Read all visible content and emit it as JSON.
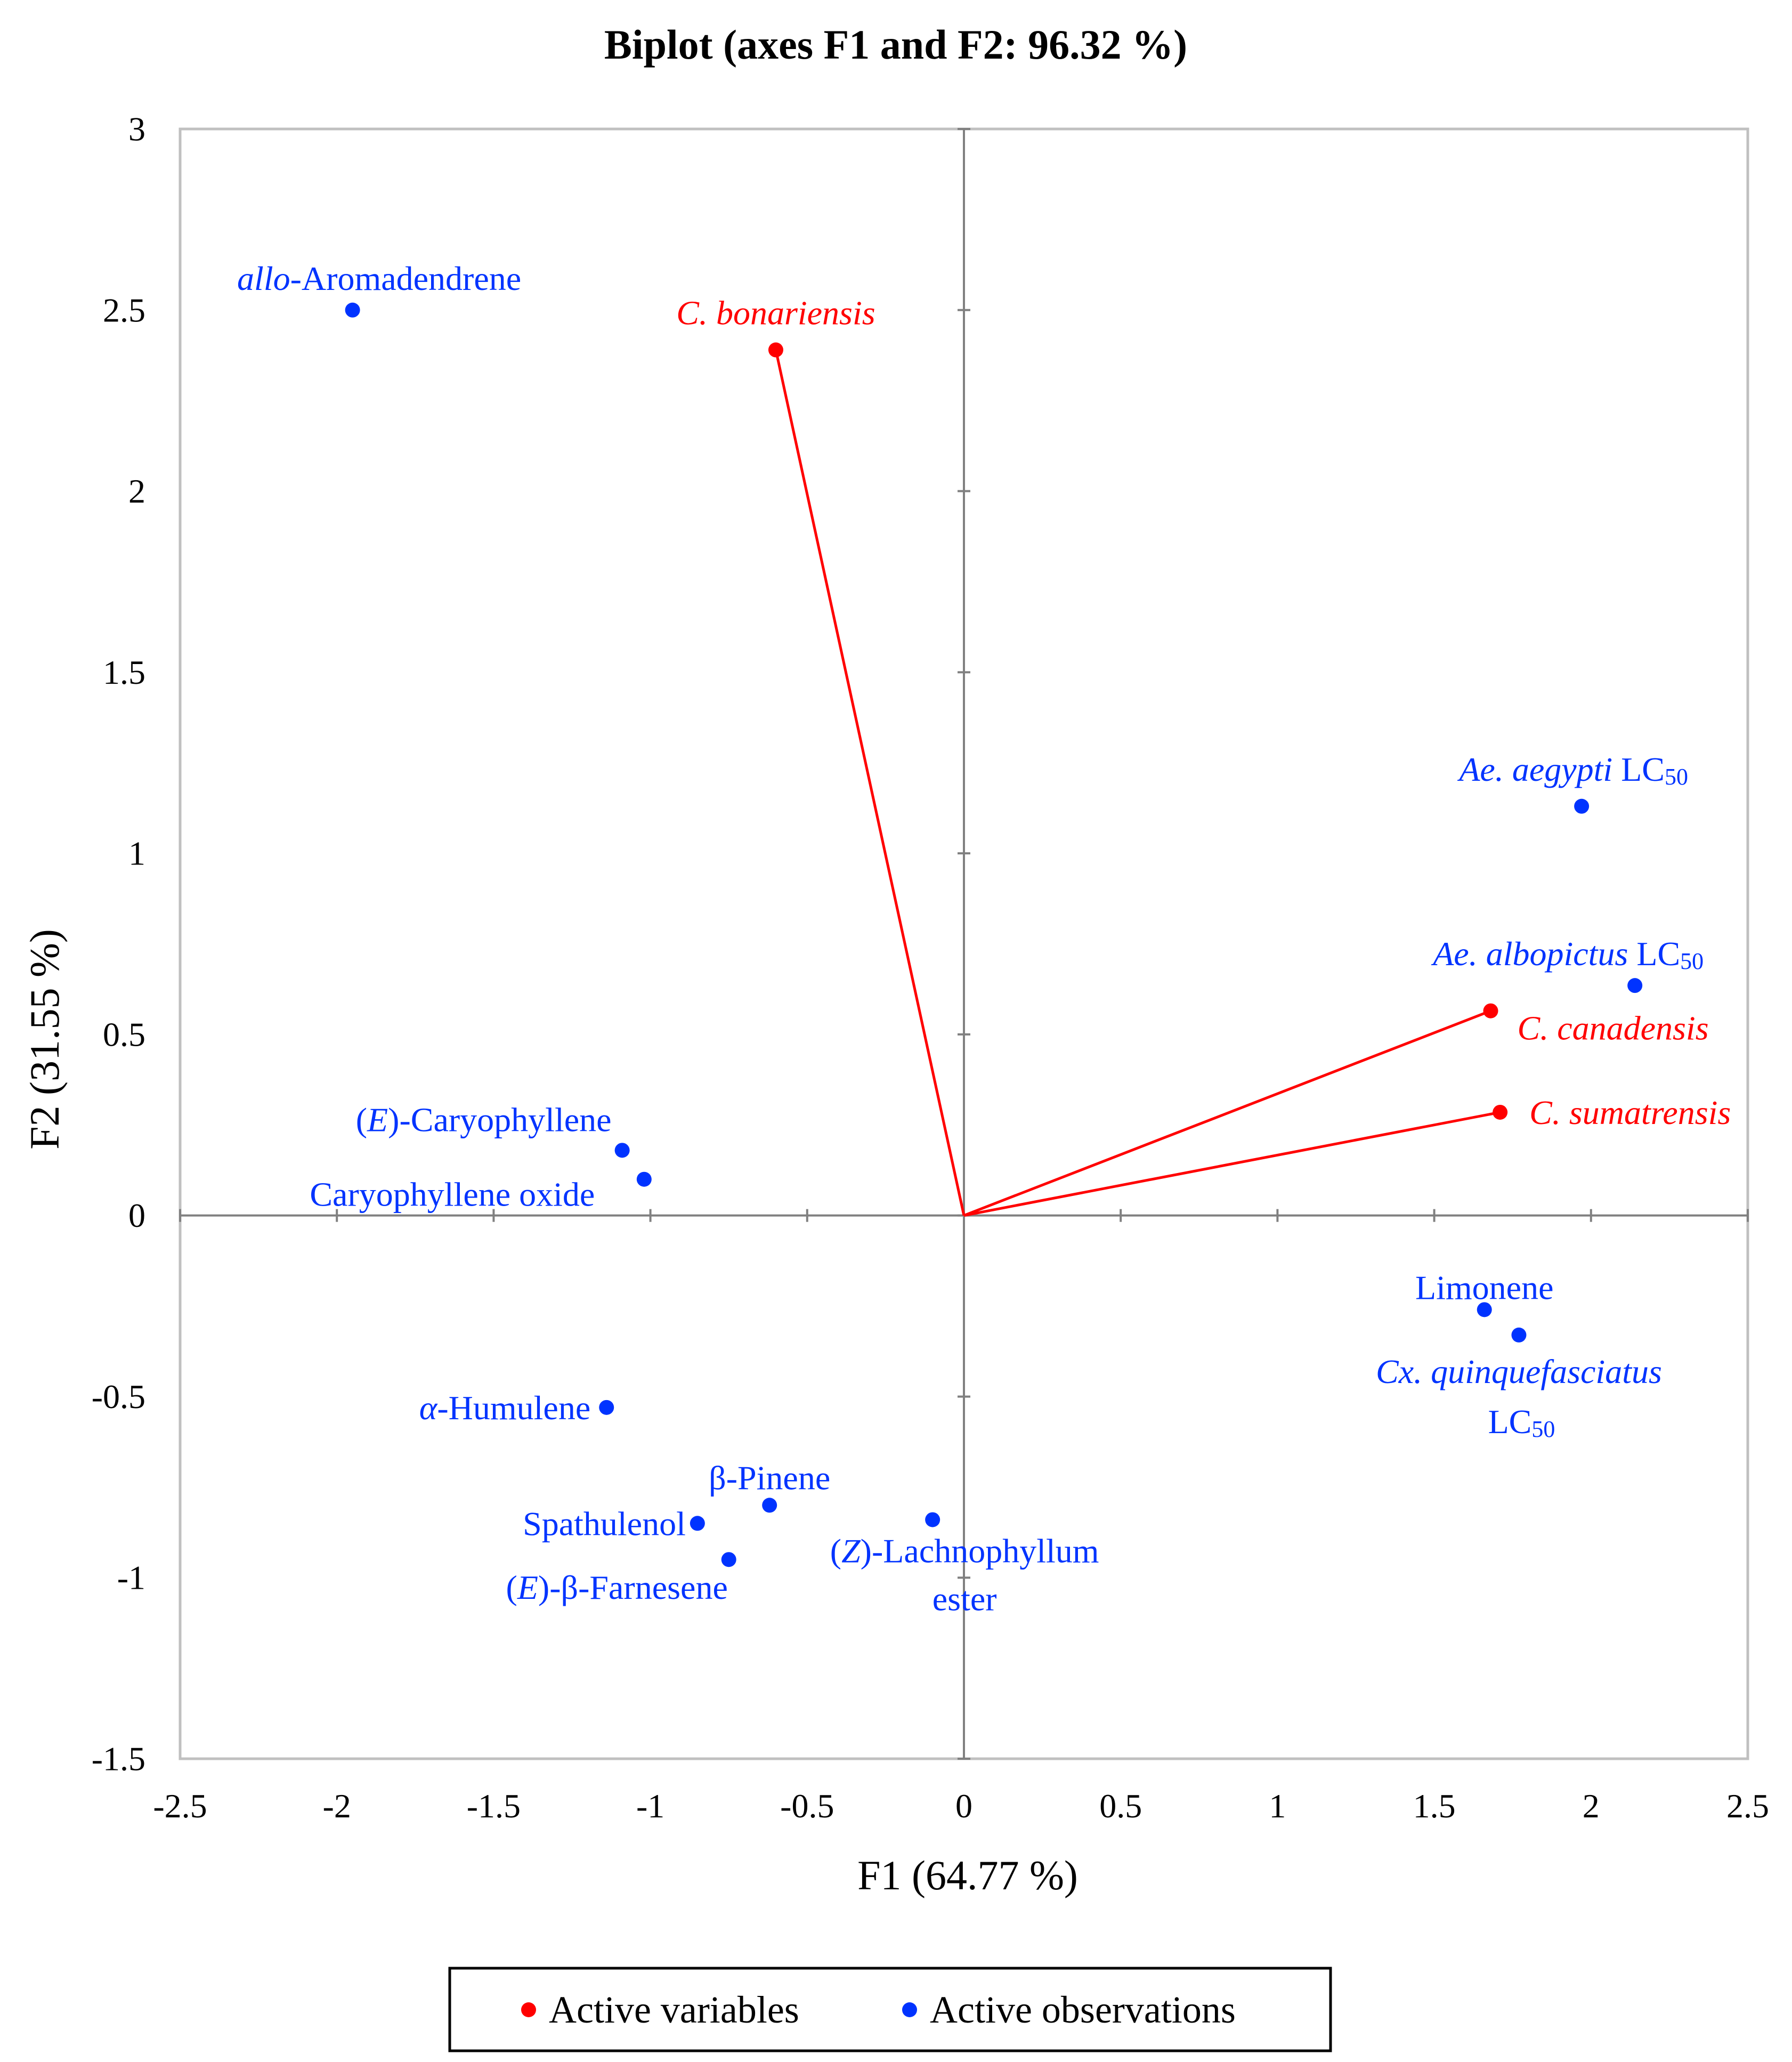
{
  "chart_data": {
    "type": "scatter",
    "title": "Biplot (axes F1 and F2: 96.32 %)",
    "xlabel": "F1 (64.77 %)",
    "ylabel": "F2 (31.55 %)",
    "xlim": [
      -2.5,
      2.5
    ],
    "ylim": [
      -1.5,
      3
    ],
    "xticks": [
      -2.5,
      -2,
      -1.5,
      -1,
      -0.5,
      0,
      0.5,
      1,
      1.5,
      2,
      2.5
    ],
    "yticks": [
      -1.5,
      -1,
      -0.5,
      0,
      0.5,
      1,
      1.5,
      2,
      2.5,
      3
    ],
    "xtick_labels": [
      "-2.5",
      "-2",
      "-1.5",
      "-1",
      "-0.5",
      "0",
      "0.5",
      "1",
      "1.5",
      "2",
      "2.5"
    ],
    "ytick_labels": [
      "-1.5",
      "-1",
      "-0.5",
      "0",
      "0.5",
      "1",
      "1.5",
      "2",
      "2.5",
      "3"
    ],
    "colors": {
      "variables": "#ff0000",
      "observations": "#0033ff",
      "axis": "#808080",
      "frame": "#c0c0c0"
    },
    "legend": {
      "position": "bottom",
      "items": [
        {
          "label": "Active variables",
          "color": "#ff0000"
        },
        {
          "label": "Active observations",
          "color": "#0033ff"
        }
      ]
    },
    "variables": [
      {
        "id": "c-bonariensis",
        "name": "C. bonariensis",
        "x": -0.6,
        "y": 2.39
      },
      {
        "id": "c-canadensis",
        "name": "C. canadensis",
        "x": 1.68,
        "y": 0.565
      },
      {
        "id": "c-sumatrensis",
        "name": "C. sumatrensis",
        "x": 1.71,
        "y": 0.285
      }
    ],
    "observations": [
      {
        "id": "allo-aromadendrene",
        "name": "allo-Aromadendrene",
        "x": -1.95,
        "y": 2.5
      },
      {
        "id": "ae-aegypti",
        "name": "Ae. aegypti LC50",
        "x": 1.97,
        "y": 1.13
      },
      {
        "id": "ae-albopictus",
        "name": "Ae. albopictus LC50",
        "x": 2.14,
        "y": 0.635
      },
      {
        "id": "e-caryophyllene",
        "name": "(E)-Caryophyllene",
        "x": -1.09,
        "y": 0.18
      },
      {
        "id": "caryophyllene-oxide",
        "name": "Caryophyllene oxide",
        "x": -1.02,
        "y": 0.1
      },
      {
        "id": "limonene",
        "name": "Limonene",
        "x": 1.66,
        "y": -0.26
      },
      {
        "id": "cx-quinquefasciatus",
        "name": "Cx. quinquefasciatus LC50",
        "x": 1.77,
        "y": -0.33
      },
      {
        "id": "alpha-humulene",
        "name": "α-Humulene",
        "x": -1.14,
        "y": -0.53
      },
      {
        "id": "beta-pinene",
        "name": "β-Pinene",
        "x": -0.62,
        "y": -0.8
      },
      {
        "id": "spathulenol",
        "name": "Spathulenol",
        "x": -0.85,
        "y": -0.85
      },
      {
        "id": "z-lachnophyllum-ester",
        "name": "(Z)-Lachnophyllum ester",
        "x": -0.1,
        "y": -0.84
      },
      {
        "id": "e-beta-farnesene",
        "name": "(E)-β-Farnesene",
        "x": -0.75,
        "y": -0.95
      }
    ],
    "label_parts": {
      "allo-aromadendrene": [
        {
          "t": "allo",
          "i": true
        },
        {
          "t": "-Aromadendrene"
        }
      ],
      "ae-aegypti": [
        {
          "t": "Ae. aegypti",
          "i": true
        },
        {
          "t": " LC"
        },
        {
          "t": "50",
          "sub": true
        }
      ],
      "ae-albopictus": [
        {
          "t": "Ae. albopictus",
          "i": true
        },
        {
          "t": " LC"
        },
        {
          "t": "50",
          "sub": true
        }
      ],
      "e-caryophyllene": [
        {
          "t": "("
        },
        {
          "t": "E",
          "i": true
        },
        {
          "t": ")-Caryophyllene"
        }
      ],
      "caryophyllene-oxide": [
        {
          "t": "Caryophyllene oxide"
        }
      ],
      "limonene": [
        {
          "t": "Limonene"
        }
      ],
      "cx-quinquefasciatus": [
        {
          "t": "Cx. quinquefasciatus",
          "i": true
        }
      ],
      "cx-quinquefasciatus-line2": [
        {
          "t": "LC"
        },
        {
          "t": "50",
          "sub": true
        }
      ],
      "alpha-humulene": [
        {
          "t": "α",
          "i": true
        },
        {
          "t": "-Humulene"
        }
      ],
      "beta-pinene": [
        {
          "t": "β-Pinene"
        }
      ],
      "spathulenol": [
        {
          "t": "Spathulenol"
        }
      ],
      "z-lachnophyllum-ester": [
        {
          "t": "("
        },
        {
          "t": "Z",
          "i": true
        },
        {
          "t": ")-Lachnophyllum"
        }
      ],
      "z-lachnophyllum-ester-line2": [
        {
          "t": "ester"
        }
      ],
      "e-beta-farnesene": [
        {
          "t": "("
        },
        {
          "t": "E",
          "i": true
        },
        {
          "t": ")-β-Farnesene"
        }
      ],
      "c-bonariensis": [
        {
          "t": "C. bonariensis",
          "i": true
        }
      ],
      "c-canadensis": [
        {
          "t": "C. canadensis",
          "i": true
        }
      ],
      "c-sumatrensis": [
        {
          "t": "C. sumatrensis",
          "i": true
        }
      ]
    }
  }
}
